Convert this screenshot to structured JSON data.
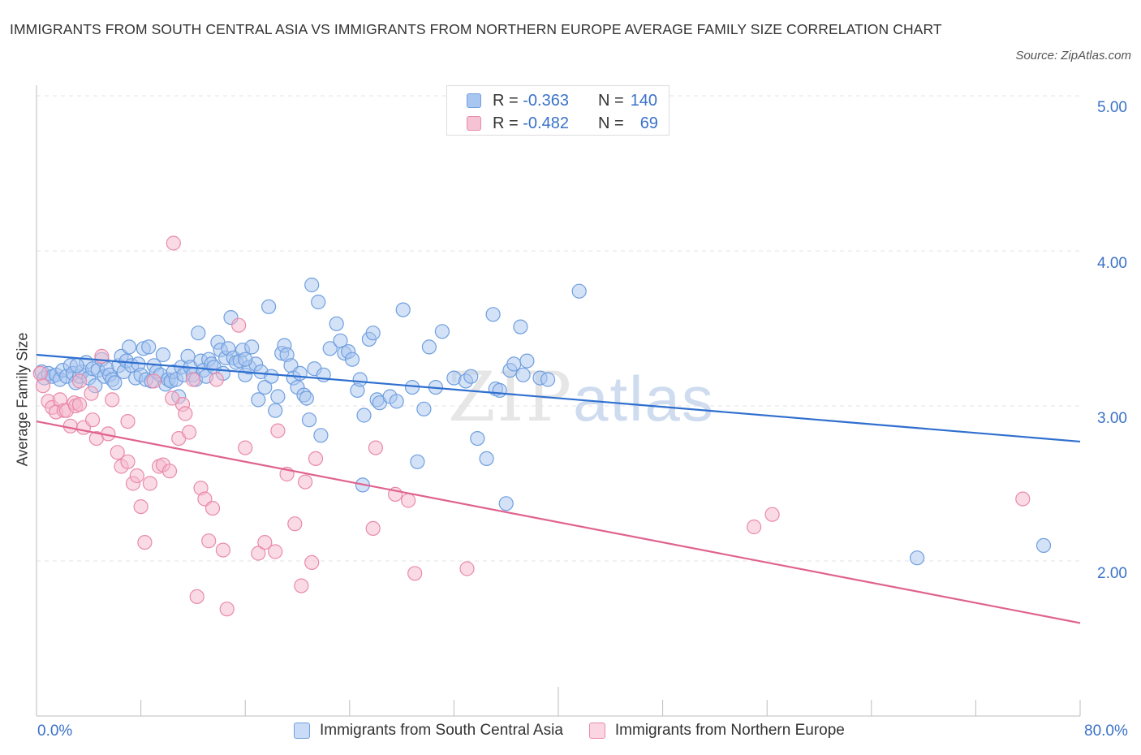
{
  "title": "IMMIGRANTS FROM SOUTH CENTRAL ASIA VS IMMIGRANTS FROM NORTHERN EUROPE AVERAGE FAMILY SIZE CORRELATION CHART",
  "source": "Source: ZipAtlas.com",
  "watermark": {
    "part1": "ZIP",
    "part2": "atlas"
  },
  "legend_top": {
    "series1": {
      "r_label": "R =",
      "r_value": "-0.363",
      "n_label": "N =",
      "n_value": "140"
    },
    "series2": {
      "r_label": "R =",
      "r_value": "-0.482",
      "n_label": "N =",
      "n_value": "69"
    }
  },
  "legend_bottom": {
    "series1": "Immigrants from South Central Asia",
    "series2": "Immigrants from Northern Europe"
  },
  "colors": {
    "blue_fill": "#a9c6f0",
    "blue_stroke": "#6f9fdf",
    "blue_line": "#2f6fcf",
    "pink_fill": "#f5b8cc",
    "pink_stroke": "#e98aaa",
    "pink_line": "#e0628f",
    "accent_text": "#3a72c8",
    "grid": "#e3e3e3"
  },
  "chart_data": {
    "type": "scatter",
    "title": "IMMIGRANTS FROM SOUTH CENTRAL ASIA VS IMMIGRANTS FROM NORTHERN EUROPE AVERAGE FAMILY SIZE CORRELATION CHART",
    "xlabel": "",
    "ylabel": "Average Family Size",
    "xlim": [
      0,
      80
    ],
    "ylim": [
      1.0,
      5.0
    ],
    "x_tick_labels": [
      "0.0%",
      "80.0%"
    ],
    "y_ticks": [
      2.0,
      3.0,
      4.0,
      5.0
    ],
    "y_tick_labels": [
      "2.00",
      "3.00",
      "4.00",
      "5.00"
    ],
    "grid": true,
    "series": [
      {
        "name": "Immigrants from South Central Asia",
        "color": "#6f9fdf",
        "trend": {
          "x": [
            0,
            80
          ],
          "y": [
            3.33,
            2.77
          ]
        },
        "points": [
          [
            0.4,
            3.22
          ],
          [
            0.6,
            3.18
          ],
          [
            0.9,
            3.21
          ],
          [
            1.2,
            3.19
          ],
          [
            1.5,
            3.2
          ],
          [
            1.8,
            3.17
          ],
          [
            2.0,
            3.23
          ],
          [
            2.3,
            3.19
          ],
          [
            2.6,
            3.26
          ],
          [
            2.8,
            3.21
          ],
          [
            3.0,
            3.15
          ],
          [
            3.3,
            3.19
          ],
          [
            3.5,
            3.22
          ],
          [
            3.8,
            3.28
          ],
          [
            4.0,
            3.18
          ],
          [
            4.3,
            3.24
          ],
          [
            4.5,
            3.13
          ],
          [
            4.7,
            3.23
          ],
          [
            5.0,
            3.3
          ],
          [
            5.2,
            3.19
          ],
          [
            5.4,
            3.24
          ],
          [
            5.6,
            3.2
          ],
          [
            5.8,
            3.17
          ],
          [
            6.0,
            3.15
          ],
          [
            6.3,
            3.26
          ],
          [
            6.5,
            3.32
          ],
          [
            6.7,
            3.22
          ],
          [
            6.9,
            3.29
          ],
          [
            7.1,
            3.38
          ],
          [
            7.3,
            3.26
          ],
          [
            7.6,
            3.18
          ],
          [
            7.8,
            3.27
          ],
          [
            8.0,
            3.2
          ],
          [
            8.2,
            3.37
          ],
          [
            8.4,
            3.17
          ],
          [
            8.6,
            3.38
          ],
          [
            8.8,
            3.16
          ],
          [
            9.0,
            3.26
          ],
          [
            9.2,
            3.22
          ],
          [
            9.5,
            3.2
          ],
          [
            9.7,
            3.33
          ],
          [
            9.9,
            3.14
          ],
          [
            10.1,
            3.17
          ],
          [
            10.3,
            3.16
          ],
          [
            10.5,
            3.22
          ],
          [
            10.7,
            3.17
          ],
          [
            10.9,
            3.06
          ],
          [
            11.1,
            3.25
          ],
          [
            11.3,
            3.2
          ],
          [
            11.6,
            3.32
          ],
          [
            11.8,
            3.25
          ],
          [
            12.0,
            3.2
          ],
          [
            12.2,
            3.17
          ],
          [
            12.4,
            3.47
          ],
          [
            12.6,
            3.29
          ],
          [
            12.8,
            3.23
          ],
          [
            13.0,
            3.19
          ],
          [
            13.2,
            3.3
          ],
          [
            13.4,
            3.27
          ],
          [
            13.6,
            3.25
          ],
          [
            13.9,
            3.41
          ],
          [
            14.1,
            3.36
          ],
          [
            14.3,
            3.21
          ],
          [
            14.5,
            3.31
          ],
          [
            14.7,
            3.37
          ],
          [
            14.9,
            3.57
          ],
          [
            15.1,
            3.31
          ],
          [
            15.3,
            3.28
          ],
          [
            15.6,
            3.29
          ],
          [
            15.8,
            3.36
          ],
          [
            16.0,
            3.2
          ],
          [
            16.3,
            3.25
          ],
          [
            16.5,
            3.38
          ],
          [
            16.8,
            3.27
          ],
          [
            17.0,
            3.04
          ],
          [
            17.2,
            3.22
          ],
          [
            17.5,
            3.12
          ],
          [
            17.8,
            3.64
          ],
          [
            18.0,
            3.19
          ],
          [
            18.3,
            2.97
          ],
          [
            18.5,
            3.06
          ],
          [
            18.8,
            3.34
          ],
          [
            19.0,
            3.39
          ],
          [
            19.2,
            3.33
          ],
          [
            19.5,
            3.26
          ],
          [
            19.7,
            3.18
          ],
          [
            20.0,
            3.12
          ],
          [
            20.2,
            3.21
          ],
          [
            20.5,
            3.07
          ],
          [
            20.7,
            3.05
          ],
          [
            20.9,
            2.91
          ],
          [
            21.1,
            3.78
          ],
          [
            21.3,
            3.24
          ],
          [
            21.6,
            3.67
          ],
          [
            21.8,
            2.81
          ],
          [
            22.0,
            3.2
          ],
          [
            22.5,
            3.37
          ],
          [
            23.0,
            3.53
          ],
          [
            23.3,
            3.42
          ],
          [
            23.6,
            3.34
          ],
          [
            23.9,
            3.35
          ],
          [
            24.2,
            3.3
          ],
          [
            24.6,
            3.1
          ],
          [
            24.8,
            3.17
          ],
          [
            25.1,
            2.94
          ],
          [
            25.5,
            3.43
          ],
          [
            25.8,
            3.47
          ],
          [
            26.1,
            3.04
          ],
          [
            26.3,
            3.02
          ],
          [
            27.1,
            3.06
          ],
          [
            27.6,
            3.03
          ],
          [
            28.1,
            3.62
          ],
          [
            28.8,
            3.12
          ],
          [
            29.2,
            2.64
          ],
          [
            29.7,
            2.98
          ],
          [
            30.1,
            3.38
          ],
          [
            30.6,
            3.12
          ],
          [
            31.1,
            3.48
          ],
          [
            32.0,
            3.18
          ],
          [
            32.9,
            3.16
          ],
          [
            33.3,
            3.19
          ],
          [
            33.8,
            2.79
          ],
          [
            34.5,
            2.66
          ],
          [
            35.0,
            3.59
          ],
          [
            35.2,
            3.11
          ],
          [
            35.5,
            3.1
          ],
          [
            36.0,
            2.37
          ],
          [
            36.3,
            3.23
          ],
          [
            36.6,
            3.27
          ],
          [
            37.1,
            3.51
          ],
          [
            37.3,
            3.2
          ],
          [
            37.6,
            3.29
          ],
          [
            38.6,
            3.18
          ],
          [
            39.2,
            3.17
          ],
          [
            41.6,
            3.74
          ],
          [
            67.5,
            2.02
          ],
          [
            77.2,
            2.1
          ],
          [
            25.0,
            2.49
          ],
          [
            3.1,
            3.26
          ],
          [
            16.0,
            3.3
          ]
        ]
      },
      {
        "name": "Immigrants from Northern Europe",
        "color": "#e98aaa",
        "trend": {
          "x": [
            0,
            80
          ],
          "y": [
            2.9,
            1.6
          ]
        },
        "points": [
          [
            0.3,
            3.21
          ],
          [
            0.5,
            3.13
          ],
          [
            0.9,
            3.03
          ],
          [
            1.2,
            2.99
          ],
          [
            1.5,
            2.96
          ],
          [
            1.8,
            3.04
          ],
          [
            2.1,
            2.97
          ],
          [
            2.3,
            2.97
          ],
          [
            2.6,
            2.87
          ],
          [
            2.9,
            3.02
          ],
          [
            3.0,
            3.0
          ],
          [
            3.3,
            3.01
          ],
          [
            3.6,
            2.86
          ],
          [
            4.2,
            3.08
          ],
          [
            4.3,
            2.91
          ],
          [
            4.6,
            2.79
          ],
          [
            5.0,
            3.32
          ],
          [
            5.5,
            2.82
          ],
          [
            5.8,
            3.04
          ],
          [
            6.2,
            2.7
          ],
          [
            6.5,
            2.61
          ],
          [
            7.0,
            2.64
          ],
          [
            7.4,
            2.5
          ],
          [
            7.7,
            2.55
          ],
          [
            8.0,
            2.35
          ],
          [
            8.3,
            2.12
          ],
          [
            8.7,
            2.5
          ],
          [
            9.0,
            3.16
          ],
          [
            9.4,
            2.61
          ],
          [
            9.7,
            2.62
          ],
          [
            10.2,
            2.58
          ],
          [
            10.5,
            4.05
          ],
          [
            10.9,
            2.79
          ],
          [
            11.2,
            3.01
          ],
          [
            11.4,
            2.95
          ],
          [
            11.7,
            2.83
          ],
          [
            12.0,
            3.17
          ],
          [
            12.3,
            1.77
          ],
          [
            12.6,
            2.47
          ],
          [
            12.9,
            2.4
          ],
          [
            13.2,
            2.13
          ],
          [
            13.5,
            2.34
          ],
          [
            13.8,
            3.17
          ],
          [
            14.3,
            2.07
          ],
          [
            15.5,
            3.52
          ],
          [
            16.0,
            2.73
          ],
          [
            17.0,
            2.05
          ],
          [
            17.5,
            2.12
          ],
          [
            18.3,
            2.06
          ],
          [
            18.5,
            2.84
          ],
          [
            19.2,
            2.56
          ],
          [
            20.3,
            1.84
          ],
          [
            20.6,
            2.51
          ],
          [
            21.1,
            1.99
          ],
          [
            21.4,
            2.66
          ],
          [
            25.8,
            2.21
          ],
          [
            26.0,
            2.73
          ],
          [
            27.5,
            2.43
          ],
          [
            28.5,
            2.39
          ],
          [
            29.0,
            1.92
          ],
          [
            33.0,
            1.95
          ],
          [
            55.0,
            2.22
          ],
          [
            56.4,
            2.3
          ],
          [
            75.6,
            2.4
          ],
          [
            3.3,
            3.16
          ],
          [
            10.4,
            3.05
          ],
          [
            14.6,
            1.69
          ],
          [
            7.0,
            2.9
          ],
          [
            19.8,
            2.24
          ]
        ]
      }
    ]
  }
}
